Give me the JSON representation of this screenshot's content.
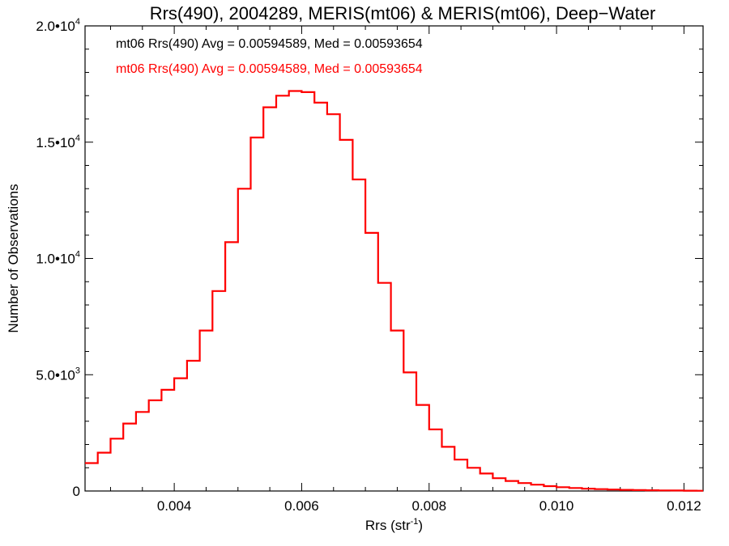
{
  "chart_data": {
    "type": "line",
    "title": "Rrs(490), 2004289, MERIS(mt06) & MERIS(mt06), Deep−Water",
    "xlabel": {
      "base": "Rrs (str",
      "sup": "-1",
      "close": ")"
    },
    "ylabel": "Number of Observations",
    "xlim": [
      0.0026,
      0.0123
    ],
    "ylim": [
      0,
      20000
    ],
    "xticks": [
      {
        "value": 0.004,
        "label": "0.004"
      },
      {
        "value": 0.006,
        "label": "0.006"
      },
      {
        "value": 0.008,
        "label": "0.008"
      },
      {
        "value": 0.01,
        "label": "0.010"
      },
      {
        "value": 0.012,
        "label": "0.012"
      }
    ],
    "yticks": [
      {
        "value": 0,
        "label": "0",
        "sup": ""
      },
      {
        "value": 5000,
        "label": "5.0•10",
        "sup": "3"
      },
      {
        "value": 10000,
        "label": "1.0•10",
        "sup": "4"
      },
      {
        "value": 15000,
        "label": "1.5•10",
        "sup": "4"
      },
      {
        "value": 20000,
        "label": "2.0•10",
        "sup": "4"
      }
    ],
    "annotations": [
      {
        "text": "mt06 Rrs(490) Avg = 0.00594589, Med = 0.00593654",
        "color": "#000000"
      },
      {
        "text": "mt06 Rrs(490) Avg = 0.00594589, Med = 0.00593654",
        "color": "#ff0000"
      }
    ],
    "series": [
      {
        "color": "#ff0000",
        "step": true,
        "x": [
          0.0026,
          0.0028,
          0.003,
          0.0032,
          0.0034,
          0.0036,
          0.0038,
          0.004,
          0.0042,
          0.0044,
          0.0046,
          0.0048,
          0.005,
          0.0052,
          0.0054,
          0.0056,
          0.0058,
          0.006,
          0.0062,
          0.0064,
          0.0066,
          0.0068,
          0.007,
          0.0072,
          0.0074,
          0.0076,
          0.0078,
          0.008,
          0.0082,
          0.0084,
          0.0086,
          0.0088,
          0.009,
          0.0092,
          0.0094,
          0.0096,
          0.0098,
          0.01,
          0.0102,
          0.0104,
          0.0106,
          0.0108,
          0.011,
          0.0112,
          0.0114,
          0.0116,
          0.0118,
          0.012,
          0.0122,
          0.0123
        ],
        "y": [
          1200,
          1650,
          2250,
          2900,
          3400,
          3900,
          4350,
          4850,
          5600,
          6900,
          8600,
          10700,
          13000,
          15200,
          16500,
          17000,
          17200,
          17150,
          16700,
          16200,
          15100,
          13400,
          11100,
          8950,
          6900,
          5100,
          3700,
          2650,
          1900,
          1350,
          1000,
          750,
          550,
          430,
          340,
          270,
          210,
          165,
          130,
          100,
          80,
          62,
          48,
          38,
          30,
          24,
          20,
          15,
          12,
          10
        ]
      }
    ]
  }
}
